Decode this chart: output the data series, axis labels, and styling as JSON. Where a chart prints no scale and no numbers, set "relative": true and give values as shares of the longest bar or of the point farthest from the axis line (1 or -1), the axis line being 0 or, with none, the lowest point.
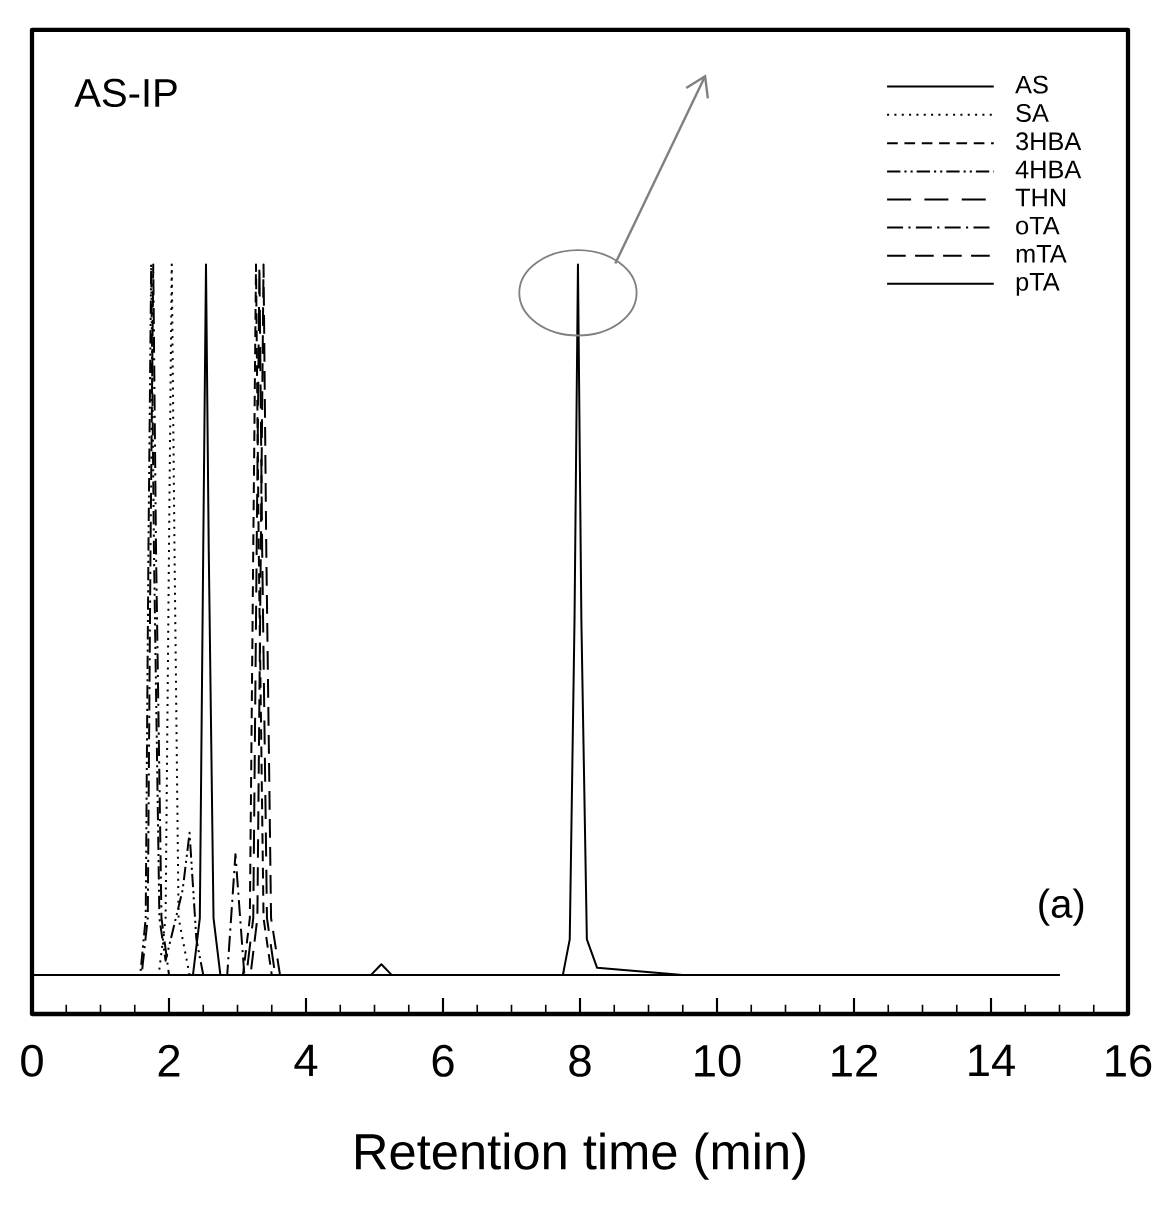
{
  "chart_data": {
    "type": "line",
    "relative": true,
    "xlabel": "Retention time (min)",
    "xlim": [
      0,
      16
    ],
    "xticks": [
      0,
      2,
      4,
      6,
      8,
      10,
      12,
      14,
      16
    ],
    "legend": "top right",
    "grid": false,
    "marker": "none",
    "annotations": [
      "AS-IP",
      "(a)"
    ],
    "series": [
      {
        "name": "AS",
        "color": "#000000",
        "line_style": "solid",
        "x": [
          0,
          7.75,
          7.85,
          7.92,
          7.97,
          8.02,
          8.1,
          8.25,
          9.5,
          15
        ],
        "values": [
          0,
          0,
          0.05,
          0.5,
          1,
          0.5,
          0.05,
          0.01,
          0,
          0
        ]
      },
      {
        "name": "SA",
        "color": "#000000",
        "line_style": "dotted",
        "x": [
          0,
          1.85,
          1.95,
          2.0,
          2.04,
          2.08,
          2.14,
          2.3,
          15
        ],
        "values": [
          0,
          0,
          0.08,
          0.6,
          1,
          0.6,
          0.08,
          0,
          0
        ]
      },
      {
        "name": "3HBA",
        "color": "#000000",
        "line_style": "dashed",
        "x": [
          0,
          3.08,
          3.18,
          3.23,
          3.27,
          3.31,
          3.38,
          3.5,
          15
        ],
        "values": [
          0,
          0,
          0.08,
          0.6,
          1,
          0.6,
          0.08,
          0,
          0
        ]
      },
      {
        "name": "4HBA",
        "color": "#000000",
        "line_style": "dashdotdot",
        "x": [
          0,
          1.58,
          1.66,
          1.7,
          1.74,
          1.78,
          1.86,
          1.95,
          2.2,
          2.3,
          2.4,
          2.5,
          15
        ],
        "values": [
          0,
          0,
          0.08,
          0.6,
          1,
          0.6,
          0.08,
          0.02,
          0.12,
          0.2,
          0.05,
          0,
          0
        ]
      },
      {
        "name": "THN",
        "color": "#000000",
        "line_style": "longdash",
        "x": [
          0,
          3.13,
          3.23,
          3.28,
          3.32,
          3.36,
          3.43,
          3.55,
          15
        ],
        "values": [
          0,
          0,
          0.08,
          0.6,
          1,
          0.6,
          0.08,
          0,
          0
        ]
      },
      {
        "name": "oTA",
        "color": "#000000",
        "line_style": "dashdot",
        "x": [
          0,
          1.6,
          1.69,
          1.73,
          1.77,
          1.81,
          1.89,
          2.0,
          2.85,
          2.97,
          3.1,
          15
        ],
        "values": [
          0,
          0,
          0.08,
          0.6,
          1,
          0.6,
          0.08,
          0,
          0,
          0.17,
          0,
          0
        ]
      },
      {
        "name": "mTA",
        "color": "#000000",
        "line_style": "mediumdash",
        "x": [
          0,
          3.19,
          3.29,
          3.34,
          3.38,
          3.42,
          3.49,
          3.62,
          15
        ],
        "values": [
          0,
          0,
          0.08,
          0.6,
          1,
          0.6,
          0.08,
          0,
          0
        ]
      },
      {
        "name": "pTA",
        "color": "#000000",
        "line_style": "solid",
        "x": [
          0,
          2.35,
          2.45,
          2.5,
          2.54,
          2.58,
          2.65,
          2.75,
          4.95,
          5.1,
          5.25,
          15
        ],
        "values": [
          0,
          0,
          0.08,
          0.6,
          1,
          0.6,
          0.08,
          0,
          0,
          0.015,
          0,
          0
        ]
      }
    ]
  }
}
